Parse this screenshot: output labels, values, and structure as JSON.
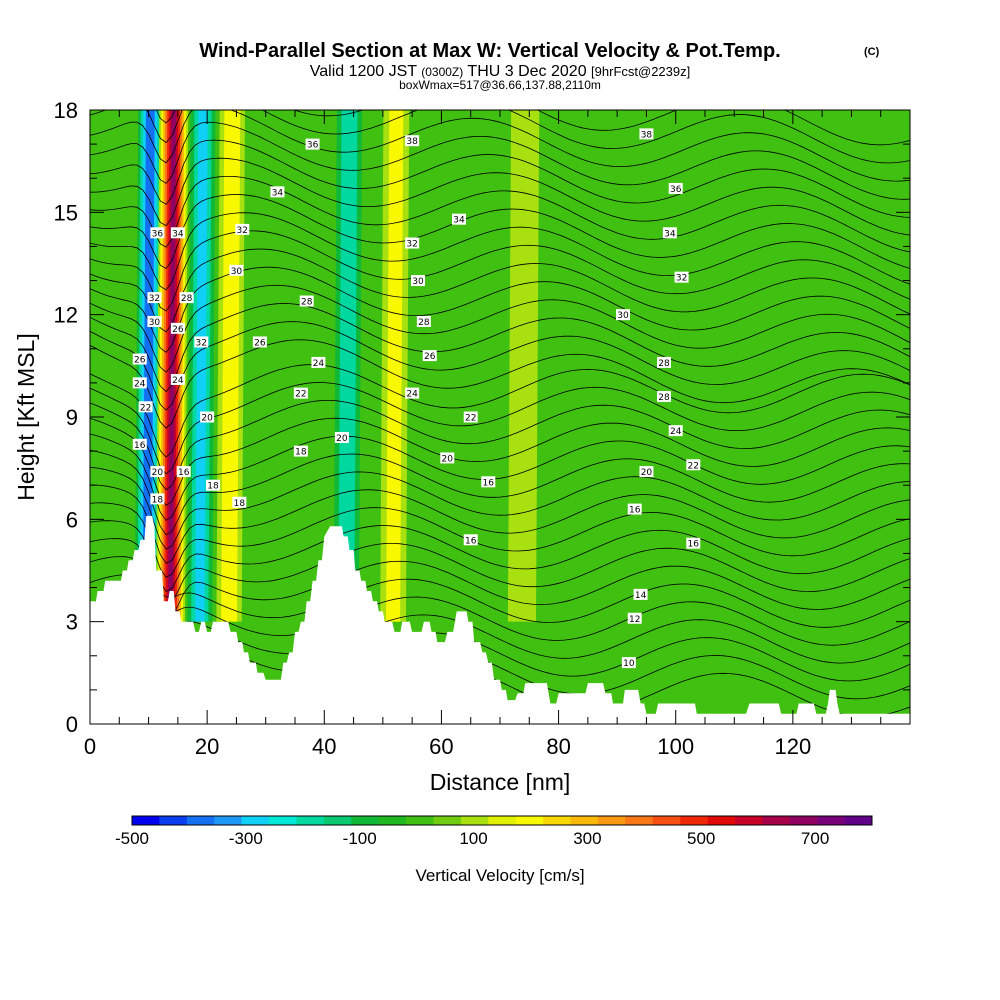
{
  "chart_data": {
    "type": "heatmap",
    "title": "Wind-Parallel Section at Max W: Vertical Velocity & Pot.Temp.",
    "title_mark": "(C)",
    "subtitle_parts": {
      "a": "Valid 1200 JST",
      "b": "(0300Z)",
      "c": "THU 3 Dec 2020",
      "d": "[9hrFcst@2239z]"
    },
    "info_line": "boxWmax=517@36.66,137.88,2110m",
    "xlabel": "Distance [nm]",
    "ylabel": "Height [Kft MSL]",
    "xlim": [
      0,
      140
    ],
    "ylim": [
      0,
      18
    ],
    "x_ticks": [
      "0",
      "20",
      "40",
      "60",
      "80",
      "100",
      "120"
    ],
    "y_ticks": [
      "0",
      "3",
      "6",
      "9",
      "12",
      "15",
      "18"
    ],
    "colorbar": {
      "label": "Vertical Velocity [cm/s]",
      "ticks": [
        "-500",
        "-300",
        "-100",
        "100",
        "300",
        "500",
        "700"
      ],
      "colors": [
        "#0000ee",
        "#0a3cf0",
        "#1470f2",
        "#1e98f5",
        "#10d0f5",
        "#00e8d8",
        "#00d8a0",
        "#08c870",
        "#10b838",
        "#20b820",
        "#40c010",
        "#70cc10",
        "#a8e010",
        "#e0f000",
        "#f8f800",
        "#f8d800",
        "#f8b808",
        "#f89810",
        "#f87818",
        "#f85010",
        "#f02808",
        "#e00808",
        "#c80028",
        "#a80048",
        "#900060",
        "#780078",
        "#600088"
      ]
    },
    "series": [
      {
        "name": "Vertical Velocity",
        "kind": "filled",
        "features": [
          {
            "type": "downdraft",
            "x": 11,
            "level": -450
          },
          {
            "type": "updraft",
            "x": 15,
            "level": 700
          },
          {
            "type": "downdraft",
            "x": 20,
            "level": -300
          },
          {
            "type": "updraft",
            "x": 25,
            "level": 250
          },
          {
            "type": "downdraft",
            "x": 45,
            "level": -250
          },
          {
            "type": "updraft",
            "x": 53,
            "level": 200
          },
          {
            "type": "updraft",
            "x": 75,
            "level": 100
          }
        ]
      },
      {
        "name": "Pot.Temp.",
        "kind": "contour",
        "labels": [
          {
            "text": "36",
            "x": 38,
            "y": 17.0
          },
          {
            "text": "38",
            "x": 55,
            "y": 17.1
          },
          {
            "text": "38",
            "x": 95,
            "y": 17.3
          },
          {
            "text": "34",
            "x": 32,
            "y": 15.6
          },
          {
            "text": "36",
            "x": 100,
            "y": 15.7
          },
          {
            "text": "34",
            "x": 63,
            "y": 14.8
          },
          {
            "text": "34",
            "x": 99,
            "y": 14.4
          },
          {
            "text": "36",
            "x": 11.5,
            "y": 14.4
          },
          {
            "text": "34",
            "x": 15,
            "y": 14.4
          },
          {
            "text": "32",
            "x": 26,
            "y": 14.5
          },
          {
            "text": "32",
            "x": 55,
            "y": 14.1
          },
          {
            "text": "30",
            "x": 25,
            "y": 13.3
          },
          {
            "text": "32",
            "x": 101,
            "y": 13.1
          },
          {
            "text": "30",
            "x": 56,
            "y": 13.0
          },
          {
            "text": "32",
            "x": 11,
            "y": 12.5
          },
          {
            "text": "28",
            "x": 16.5,
            "y": 12.5
          },
          {
            "text": "28",
            "x": 37,
            "y": 12.4
          },
          {
            "text": "30",
            "x": 91,
            "y": 12.0
          },
          {
            "text": "28",
            "x": 57,
            "y": 11.8
          },
          {
            "text": "30",
            "x": 11,
            "y": 11.8
          },
          {
            "text": "26",
            "x": 15,
            "y": 11.6
          },
          {
            "text": "32",
            "x": 19,
            "y": 11.2
          },
          {
            "text": "26",
            "x": 29,
            "y": 11.2
          },
          {
            "text": "26",
            "x": 58,
            "y": 10.8
          },
          {
            "text": "26",
            "x": 8.5,
            "y": 10.7
          },
          {
            "text": "24",
            "x": 39,
            "y": 10.6
          },
          {
            "text": "28",
            "x": 98,
            "y": 10.6
          },
          {
            "text": "24",
            "x": 8.5,
            "y": 10.0
          },
          {
            "text": "24",
            "x": 15,
            "y": 10.1
          },
          {
            "text": "22",
            "x": 36,
            "y": 9.7
          },
          {
            "text": "24",
            "x": 55,
            "y": 9.7
          },
          {
            "text": "28",
            "x": 98,
            "y": 9.6
          },
          {
            "text": "22",
            "x": 9.5,
            "y": 9.3
          },
          {
            "text": "20",
            "x": 20,
            "y": 9.0
          },
          {
            "text": "22",
            "x": 65,
            "y": 9.0
          },
          {
            "text": "24",
            "x": 100,
            "y": 8.6
          },
          {
            "text": "20",
            "x": 43,
            "y": 8.4
          },
          {
            "text": "16",
            "x": 8.5,
            "y": 8.2
          },
          {
            "text": "18",
            "x": 36,
            "y": 8.0
          },
          {
            "text": "20",
            "x": 61,
            "y": 7.8
          },
          {
            "text": "22",
            "x": 103,
            "y": 7.6
          },
          {
            "text": "20",
            "x": 11.5,
            "y": 7.4
          },
          {
            "text": "16",
            "x": 16,
            "y": 7.4
          },
          {
            "text": "20",
            "x": 95,
            "y": 7.4
          },
          {
            "text": "16",
            "x": 68,
            "y": 7.1
          },
          {
            "text": "18",
            "x": 21,
            "y": 7.0
          },
          {
            "text": "18",
            "x": 11.5,
            "y": 6.6
          },
          {
            "text": "18",
            "x": 25.5,
            "y": 6.5
          },
          {
            "text": "16",
            "x": 93,
            "y": 6.3
          },
          {
            "text": "16",
            "x": 65,
            "y": 5.4
          },
          {
            "text": "16",
            "x": 103,
            "y": 5.3
          },
          {
            "text": "14",
            "x": 94,
            "y": 3.8
          },
          {
            "text": "12",
            "x": 93,
            "y": 3.1
          },
          {
            "text": "10",
            "x": 92,
            "y": 1.8
          }
        ]
      }
    ],
    "terrain_top_kft": [
      [
        0,
        3.6
      ],
      [
        1,
        3.6
      ],
      [
        1.3,
        3.9
      ],
      [
        2.3,
        3.9
      ],
      [
        2.6,
        4.2
      ],
      [
        5.3,
        4.2
      ],
      [
        5.6,
        4.5
      ],
      [
        6.3,
        4.5
      ],
      [
        6.6,
        4.8
      ],
      [
        7.3,
        4.8
      ],
      [
        7.6,
        5.1
      ],
      [
        8.3,
        5.1
      ],
      [
        8.6,
        5.4
      ],
      [
        9.3,
        5.4
      ],
      [
        9.6,
        6.1
      ],
      [
        10.6,
        6.1
      ],
      [
        11,
        5.8
      ],
      [
        11.3,
        4.5
      ],
      [
        12.3,
        4.5
      ],
      [
        12.6,
        3.6
      ],
      [
        13.3,
        3.6
      ],
      [
        13.6,
        3.9
      ],
      [
        14.3,
        3.9
      ],
      [
        14.6,
        3.3
      ],
      [
        15.3,
        3.3
      ],
      [
        15.6,
        3.0
      ],
      [
        17.6,
        3.0
      ],
      [
        18,
        2.7
      ],
      [
        18.6,
        2.7
      ],
      [
        19,
        3.0
      ],
      [
        19.6,
        3.0
      ],
      [
        20,
        2.7
      ],
      [
        20.6,
        2.7
      ],
      [
        21,
        3.0
      ],
      [
        23.6,
        3.0
      ],
      [
        24,
        2.7
      ],
      [
        25,
        2.7
      ],
      [
        25.3,
        2.4
      ],
      [
        26,
        2.4
      ],
      [
        26.3,
        2.1
      ],
      [
        27,
        2.1
      ],
      [
        27.3,
        1.8
      ],
      [
        28.3,
        1.8
      ],
      [
        28.6,
        1.5
      ],
      [
        29.6,
        1.5
      ],
      [
        30,
        1.3
      ],
      [
        32.6,
        1.3
      ],
      [
        33,
        1.8
      ],
      [
        33.6,
        1.8
      ],
      [
        34,
        2.1
      ],
      [
        34.6,
        2.1
      ],
      [
        35,
        2.7
      ],
      [
        35.6,
        2.7
      ],
      [
        36,
        3.0
      ],
      [
        36.6,
        3.0
      ],
      [
        37,
        3.6
      ],
      [
        37.6,
        3.6
      ],
      [
        38,
        4.2
      ],
      [
        38.6,
        4.2
      ],
      [
        39,
        4.8
      ],
      [
        39.6,
        4.8
      ],
      [
        40,
        5.5
      ],
      [
        41,
        5.8
      ],
      [
        43,
        5.8
      ],
      [
        43.3,
        5.5
      ],
      [
        44,
        5.5
      ],
      [
        44.3,
        5.1
      ],
      [
        45,
        5.1
      ],
      [
        45.3,
        4.5
      ],
      [
        46,
        4.5
      ],
      [
        46.3,
        4.2
      ],
      [
        47,
        4.2
      ],
      [
        47.3,
        3.9
      ],
      [
        48,
        3.9
      ],
      [
        48.3,
        3.6
      ],
      [
        49,
        3.6
      ],
      [
        49.3,
        3.3
      ],
      [
        50,
        3.3
      ],
      [
        50.3,
        3.0
      ],
      [
        51.6,
        3.0
      ],
      [
        52,
        2.7
      ],
      [
        53,
        2.7
      ],
      [
        53.3,
        3.0
      ],
      [
        54.6,
        3.0
      ],
      [
        55,
        2.7
      ],
      [
        56.6,
        2.7
      ],
      [
        57,
        3.0
      ],
      [
        58,
        3.0
      ],
      [
        58.3,
        2.7
      ],
      [
        59,
        2.7
      ],
      [
        59.3,
        2.4
      ],
      [
        60.6,
        2.4
      ],
      [
        61,
        2.7
      ],
      [
        62,
        2.7
      ],
      [
        62.3,
        3.0
      ],
      [
        62.6,
        3.3
      ],
      [
        64.3,
        3.3
      ],
      [
        64.6,
        3.0
      ],
      [
        65.3,
        3.0
      ],
      [
        65.6,
        2.4
      ],
      [
        66.6,
        2.4
      ],
      [
        67,
        2.1
      ],
      [
        67.6,
        2.1
      ],
      [
        68,
        1.8
      ],
      [
        68.6,
        1.8
      ],
      [
        69,
        1.3
      ],
      [
        70,
        1.3
      ],
      [
        70.3,
        1.0
      ],
      [
        71,
        1.0
      ],
      [
        71.3,
        0.7
      ],
      [
        72.6,
        0.7
      ],
      [
        73,
        0.9
      ],
      [
        74,
        0.9
      ],
      [
        74.3,
        1.2
      ],
      [
        78,
        1.2
      ],
      [
        78.3,
        0.9
      ],
      [
        78.6,
        0.6
      ],
      [
        79.6,
        0.6
      ],
      [
        80,
        0.9
      ],
      [
        84.6,
        0.9
      ],
      [
        85,
        1.2
      ],
      [
        87.6,
        1.2
      ],
      [
        88,
        0.9
      ],
      [
        89,
        0.9
      ],
      [
        89.3,
        0.6
      ],
      [
        91,
        0.6
      ],
      [
        91.3,
        1.0
      ],
      [
        93.6,
        1.0
      ],
      [
        94,
        0.6
      ],
      [
        94.6,
        0.6
      ],
      [
        95,
        0.3
      ],
      [
        96.6,
        0.3
      ],
      [
        97,
        0.6
      ],
      [
        103.3,
        0.6
      ],
      [
        103.6,
        0.3
      ],
      [
        112,
        0.3
      ],
      [
        112.6,
        0.6
      ],
      [
        117.6,
        0.6
      ],
      [
        118,
        0.3
      ],
      [
        120.6,
        0.3
      ],
      [
        121,
        0.6
      ],
      [
        123.6,
        0.6
      ],
      [
        124,
        0.3
      ],
      [
        125.6,
        0.3
      ],
      [
        126,
        0.6
      ],
      [
        126.3,
        1.0
      ],
      [
        127.3,
        1.0
      ],
      [
        127.6,
        0.6
      ],
      [
        128,
        0.3
      ],
      [
        140,
        0.3
      ]
    ]
  }
}
